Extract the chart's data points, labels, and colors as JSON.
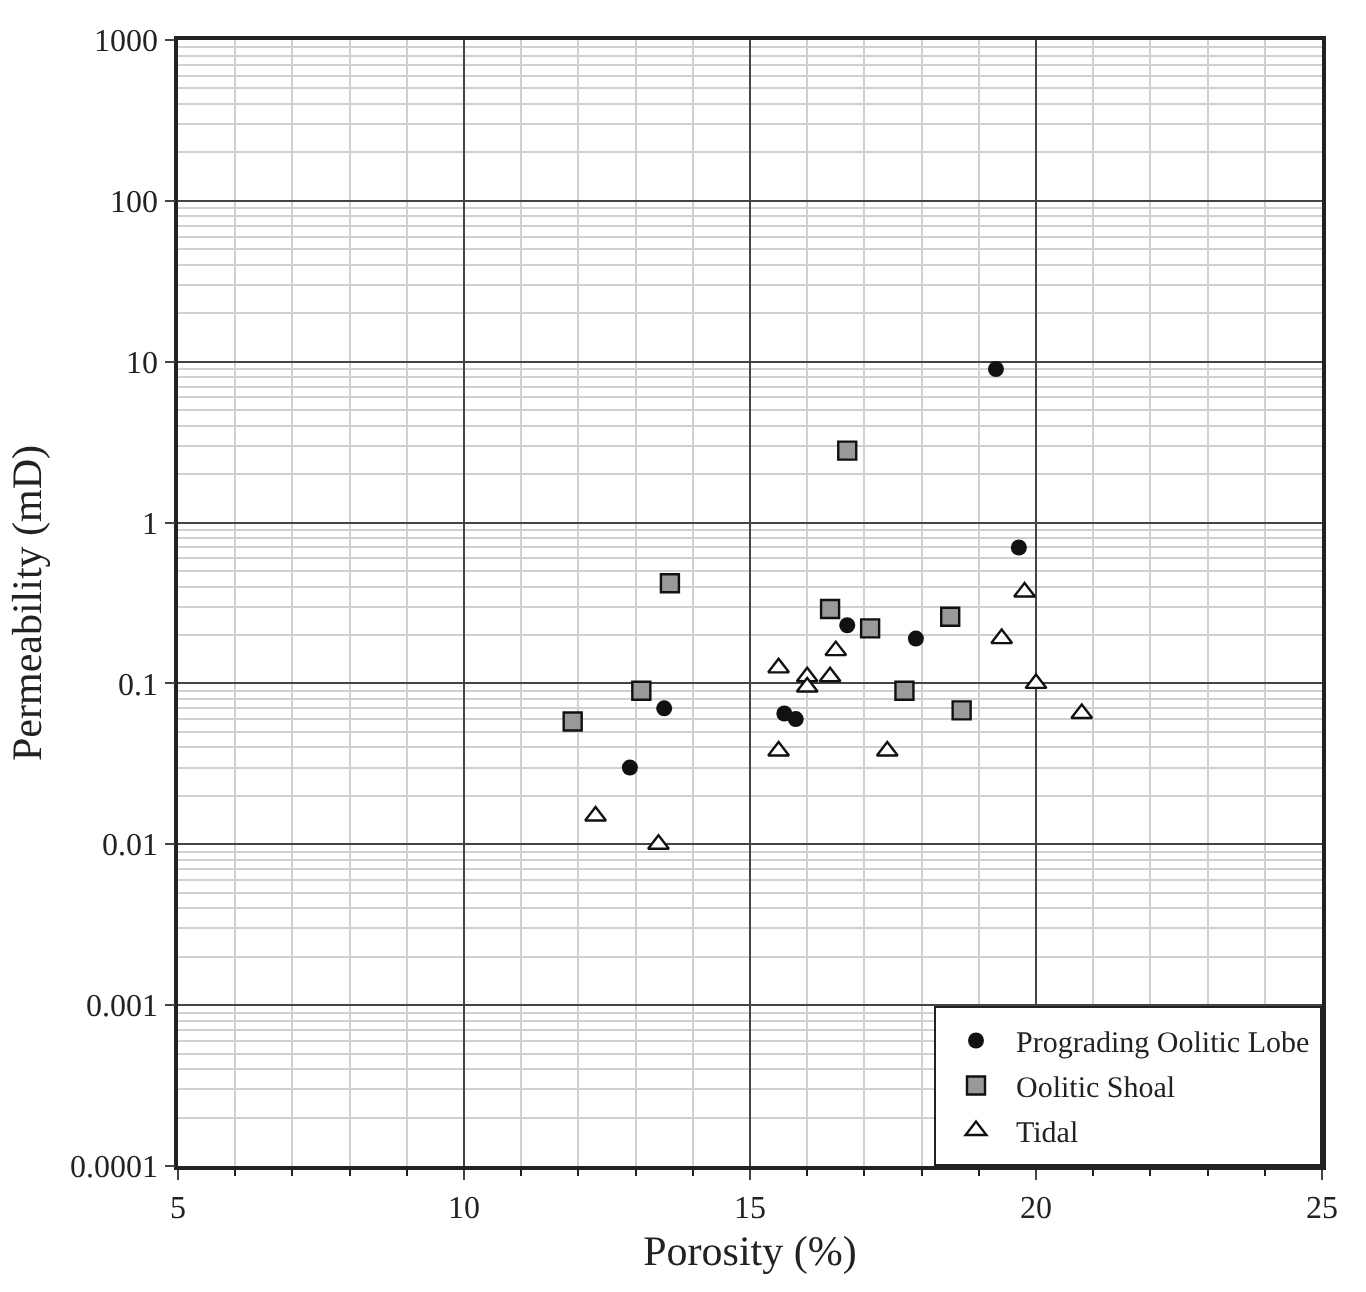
{
  "chart_data": {
    "type": "scatter",
    "xlabel": "Porosity (%)",
    "ylabel": "Permeability (mD)",
    "log": "y",
    "xlim": [
      5,
      25
    ],
    "xticks": [
      5,
      10,
      15,
      20,
      25
    ],
    "ylim": [
      0.0001,
      1000
    ],
    "yticks": [
      0.0001,
      0.001,
      0.01,
      0.1,
      1,
      10,
      100,
      1000
    ],
    "grid": true,
    "legend": "bottom right",
    "series": [
      {
        "name": "Prograding Oolitic Lobe",
        "color": "#111111",
        "marker": "circle",
        "x": [
          19.3,
          12.9,
          13.5,
          15.6,
          15.8,
          16.7,
          17.9,
          19.7
        ],
        "values": [
          9,
          0.03,
          0.07,
          0.065,
          0.06,
          0.23,
          0.19,
          0.7
        ]
      },
      {
        "name": "Oolitic Shoal",
        "color": "#999999",
        "marker": "square",
        "x": [
          11.9,
          13.1,
          13.6,
          16.7,
          16.4,
          17.1,
          17.7,
          18.5,
          18.7
        ],
        "values": [
          0.058,
          0.09,
          0.42,
          2.8,
          0.29,
          0.22,
          0.09,
          0.26,
          0.068
        ]
      },
      {
        "name": "Tidal",
        "color": "#ffffff",
        "marker": "triangle",
        "x": [
          12.3,
          13.4,
          15.5,
          15.5,
          16.0,
          16.0,
          16.4,
          16.5,
          17.4,
          19.4,
          19.8,
          20.0,
          20.8
        ],
        "values": [
          0.015,
          0.01,
          0.125,
          0.038,
          0.11,
          0.095,
          0.11,
          0.16,
          0.038,
          0.19,
          0.37,
          0.1,
          0.065
        ]
      }
    ]
  }
}
